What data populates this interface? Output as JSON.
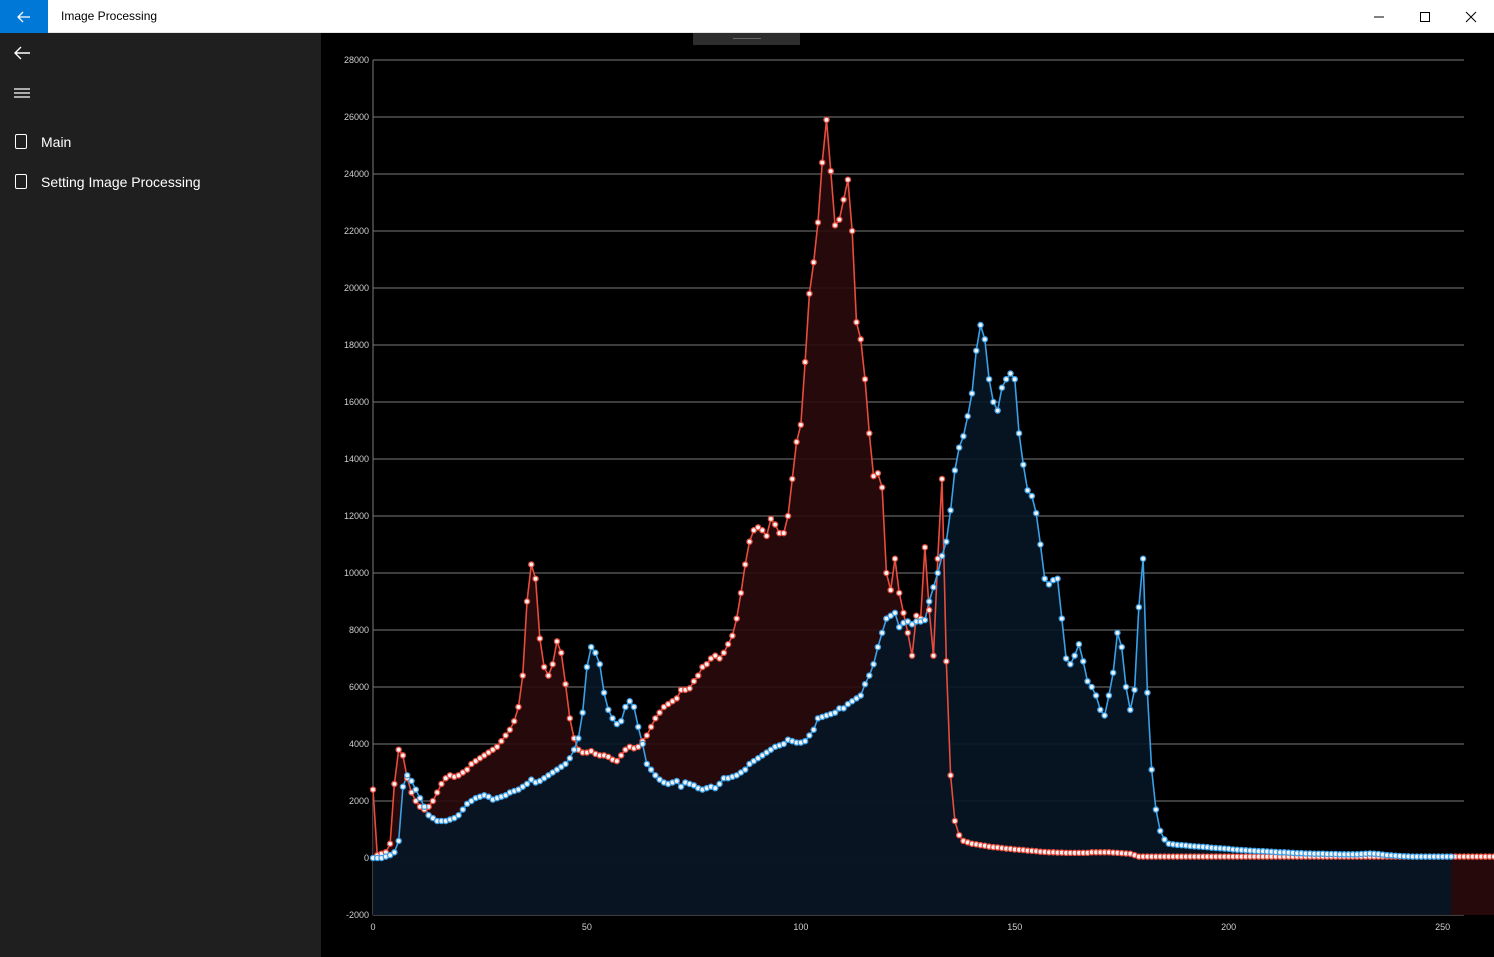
{
  "window": {
    "title": "Image Processing",
    "back_icon": "arrow-left-icon",
    "minimize_icon": "minimize-icon",
    "maximize_icon": "maximize-icon",
    "close_icon": "close-icon",
    "accent": "#0078d7"
  },
  "sidebar": {
    "back_icon": "arrow-left-icon",
    "menu_icon": "hamburger-icon",
    "items": [
      {
        "label": "Main",
        "icon": "page-icon"
      },
      {
        "label": "Setting Image Processing",
        "icon": "page-icon"
      }
    ]
  },
  "chart_data": {
    "type": "area",
    "xlim": [
      0,
      255
    ],
    "ylim": [
      -2000,
      28000
    ],
    "x_ticks": [
      0,
      50,
      100,
      150,
      200,
      250
    ],
    "y_ticks": [
      28000,
      26000,
      24000,
      22000,
      20000,
      18000,
      16000,
      14000,
      12000,
      10000,
      8000,
      6000,
      4000,
      2000,
      0,
      -2000
    ],
    "grid": true,
    "series": [
      {
        "color": "#e84c3d",
        "fill": "#2a0a0c",
        "values": [
          2400,
          100,
          150,
          200,
          500,
          2600,
          3800,
          3600,
          2800,
          2300,
          2000,
          1800,
          1700,
          1800,
          2000,
          2300,
          2600,
          2800,
          2900,
          2850,
          2900,
          3000,
          3100,
          3300,
          3400,
          3500,
          3600,
          3700,
          3800,
          3900,
          4100,
          4300,
          4500,
          4800,
          5300,
          6400,
          9000,
          10300,
          9800,
          7700,
          6700,
          6400,
          6800,
          7600,
          7200,
          6100,
          4900,
          4200,
          3800,
          3700,
          3700,
          3750,
          3650,
          3600,
          3600,
          3550,
          3450,
          3400,
          3600,
          3800,
          3900,
          3850,
          3900,
          4100,
          4300,
          4600,
          4900,
          5100,
          5300,
          5400,
          5500,
          5600,
          5900,
          5900,
          5950,
          6200,
          6400,
          6700,
          6800,
          7000,
          7100,
          7000,
          7200,
          7500,
          7800,
          8400,
          9300,
          10300,
          11100,
          11500,
          11600,
          11500,
          11300,
          11900,
          11700,
          11400,
          11400,
          12000,
          13300,
          14600,
          15200,
          17400,
          19800,
          20900,
          22300,
          24400,
          25900,
          24100,
          22200,
          22400,
          23100,
          23800,
          22000,
          18800,
          18200,
          16800,
          14900,
          13400,
          13500,
          13000,
          10000,
          9400,
          10500,
          9300,
          8600,
          7900,
          7100,
          8500,
          8400,
          10900,
          8700,
          7100,
          10500,
          13300,
          6900,
          2900,
          1300,
          800,
          600,
          550,
          500,
          480,
          450,
          430,
          400,
          380,
          370,
          350,
          330,
          320,
          300,
          290,
          280,
          260,
          250,
          240,
          220,
          210,
          200,
          200,
          190,
          190,
          180,
          180,
          180,
          180,
          180,
          180,
          200,
          200,
          200,
          200,
          200,
          190,
          180,
          170,
          160,
          150,
          100,
          50,
          50,
          50,
          50,
          50,
          50,
          50,
          50,
          50,
          50,
          50,
          50,
          50,
          50,
          50,
          50,
          50,
          50,
          50,
          50,
          50,
          50,
          50,
          50,
          50,
          50,
          50,
          50,
          50,
          50,
          50,
          50,
          50,
          50,
          50,
          50,
          50,
          50,
          50,
          50,
          50,
          50,
          50,
          50,
          50,
          50,
          50,
          50,
          50,
          50,
          50,
          50,
          50,
          50,
          50,
          50,
          50,
          50,
          50,
          50,
          50,
          50,
          50,
          50,
          50,
          50,
          50,
          50,
          50,
          50,
          50,
          50,
          50,
          50,
          50,
          50,
          50,
          50,
          50,
          50,
          50,
          50,
          50,
          50,
          50,
          50,
          50,
          50,
          50,
          50,
          50,
          50,
          50,
          50,
          50,
          50,
          50,
          50,
          50,
          50,
          50,
          50,
          50,
          50,
          50,
          50,
          50,
          50
        ]
      },
      {
        "color": "#3aa0e8",
        "fill": "#061624",
        "values": [
          0,
          0,
          0,
          50,
          100,
          200,
          600,
          2500,
          2900,
          2700,
          2400,
          2100,
          1800,
          1500,
          1400,
          1300,
          1300,
          1300,
          1350,
          1400,
          1500,
          1700,
          1900,
          2000,
          2100,
          2150,
          2200,
          2150,
          2050,
          2100,
          2150,
          2200,
          2300,
          2350,
          2400,
          2500,
          2600,
          2750,
          2650,
          2700,
          2800,
          2900,
          3000,
          3100,
          3200,
          3300,
          3500,
          3800,
          4200,
          5100,
          6700,
          7400,
          7200,
          6800,
          5800,
          5200,
          4900,
          4700,
          4800,
          5300,
          5500,
          5300,
          4600,
          4000,
          3300,
          3100,
          2900,
          2750,
          2650,
          2600,
          2650,
          2700,
          2500,
          2650,
          2600,
          2550,
          2450,
          2400,
          2450,
          2500,
          2450,
          2600,
          2800,
          2800,
          2850,
          2900,
          3000,
          3100,
          3300,
          3400,
          3500,
          3600,
          3700,
          3800,
          3900,
          3950,
          4000,
          4150,
          4100,
          4050,
          4050,
          4100,
          4300,
          4500,
          4900,
          4950,
          5000,
          5050,
          5100,
          5250,
          5250,
          5400,
          5500,
          5600,
          5700,
          6100,
          6400,
          6800,
          7400,
          7900,
          8400,
          8500,
          8600,
          8100,
          8250,
          8300,
          8200,
          8300,
          8300,
          8350,
          9000,
          9500,
          10000,
          10600,
          11100,
          12200,
          13600,
          14400,
          14800,
          15500,
          16300,
          17800,
          18700,
          18200,
          16800,
          16000,
          15700,
          16500,
          16800,
          17000,
          16800,
          14900,
          13800,
          12900,
          12700,
          12100,
          11000,
          9800,
          9600,
          9750,
          9800,
          8400,
          7000,
          6800,
          7100,
          7500,
          6900,
          6200,
          6000,
          5700,
          5200,
          5000,
          5700,
          6500,
          7900,
          7400,
          6000,
          5200,
          5900,
          8800,
          10500,
          5800,
          3100,
          1700,
          950,
          650,
          500,
          480,
          460,
          450,
          440,
          420,
          410,
          400,
          390,
          380,
          360,
          350,
          340,
          330,
          320,
          300,
          290,
          280,
          270,
          260,
          250,
          240,
          240,
          230,
          220,
          210,
          200,
          200,
          190,
          180,
          170,
          170,
          160,
          160,
          150,
          150,
          150,
          140,
          140,
          140,
          130,
          130,
          130,
          130,
          130,
          140,
          150,
          160,
          150,
          140,
          120,
          100,
          90,
          80,
          70,
          60,
          55,
          50,
          50,
          50,
          50,
          50,
          50,
          50,
          50,
          50,
          50
        ]
      }
    ]
  }
}
